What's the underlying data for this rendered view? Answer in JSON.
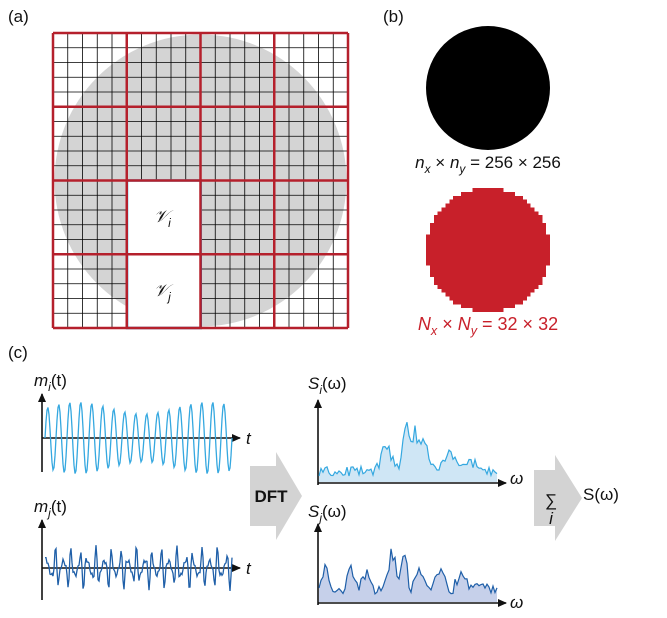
{
  "panels": {
    "a": "(a)",
    "b": "(b)",
    "c": "(c)"
  },
  "cells": {
    "vi": [
      {
        "text": "𝒱"
      },
      {
        "text": "i",
        "sub": true
      }
    ],
    "vj": [
      {
        "text": "𝒱"
      },
      {
        "text": "j",
        "sub": true
      }
    ]
  },
  "resolutions": {
    "fine": [
      {
        "text": "n"
      },
      {
        "text": "x",
        "sub": true
      },
      {
        "text": " × ",
        "plain": true
      },
      {
        "text": "n"
      },
      {
        "text": "y",
        "sub": true
      },
      {
        "text": " = 256 × 256",
        "plain": true
      }
    ],
    "coarse": [
      {
        "text": "N"
      },
      {
        "text": "x",
        "sub": true
      },
      {
        "text": " × ",
        "plain": true
      },
      {
        "text": "N"
      },
      {
        "text": "y",
        "sub": true
      },
      {
        "text": " = 32 × 32",
        "plain": true
      }
    ]
  },
  "signals": {
    "mi": [
      {
        "text": "m"
      },
      {
        "text": "i",
        "sub": true
      },
      {
        "text": "(t)",
        "mix": true
      }
    ],
    "mj": [
      {
        "text": "m"
      },
      {
        "text": "j",
        "sub": true
      },
      {
        "text": "(t)",
        "mix": true
      }
    ],
    "t1": "t",
    "t2": "t"
  },
  "transform": "DFT",
  "spectra": {
    "si": [
      {
        "text": "S"
      },
      {
        "text": "i",
        "sub": true
      },
      {
        "text": "(ω)",
        "mix": true
      }
    ],
    "sj": [
      {
        "text": "S"
      },
      {
        "text": "j",
        "sub": true
      },
      {
        "text": "(ω)",
        "mix": true
      }
    ],
    "w1": "ω",
    "w2": "ω"
  },
  "sum": {
    "symbol": "∑",
    "index": "i",
    "result": [
      {
        "text": "S(ω)",
        "mix": true
      }
    ]
  }
}
